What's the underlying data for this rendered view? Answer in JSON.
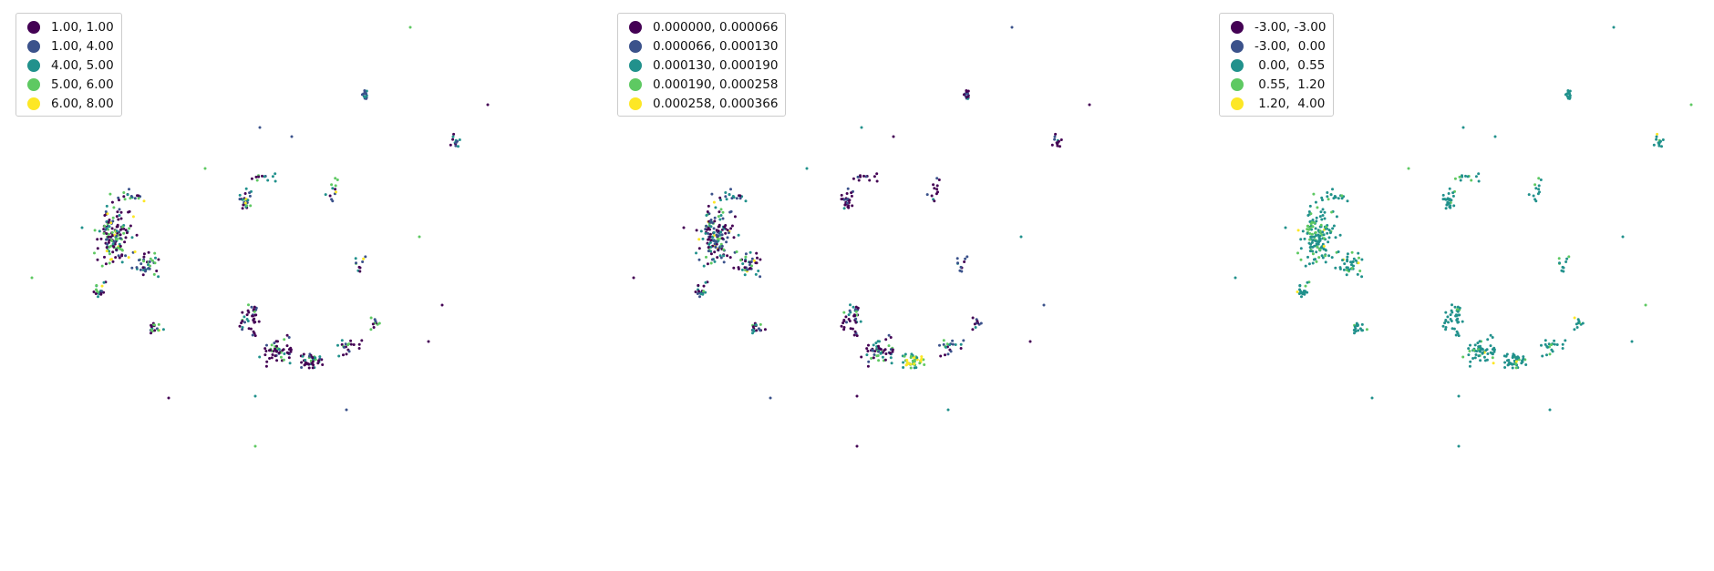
{
  "chart_data": [
    {
      "type": "scatter",
      "title": "",
      "xlabel": "",
      "ylabel": "",
      "axes_visible": false,
      "grid": false,
      "legend_position": "upper-left",
      "legend": [
        {
          "label": "1.00, 1.00",
          "color": "#440154"
        },
        {
          "label": "1.00, 4.00",
          "color": "#3b528b"
        },
        {
          "label": "4.00, 5.00",
          "color": "#21918c"
        },
        {
          "label": "5.00, 6.00",
          "color": "#5ec962"
        },
        {
          "label": "6.00, 8.00",
          "color": "#fde725"
        }
      ]
    },
    {
      "type": "scatter",
      "title": "",
      "xlabel": "",
      "ylabel": "",
      "axes_visible": false,
      "grid": false,
      "legend_position": "upper-left",
      "legend": [
        {
          "label": "0.000000, 0.000066",
          "color": "#440154"
        },
        {
          "label": "0.000066, 0.000130",
          "color": "#3b528b"
        },
        {
          "label": "0.000130, 0.000190",
          "color": "#21918c"
        },
        {
          "label": "0.000190, 0.000258",
          "color": "#5ec962"
        },
        {
          "label": "0.000258, 0.000366",
          "color": "#fde725"
        }
      ]
    },
    {
      "type": "scatter",
      "title": "",
      "xlabel": "",
      "ylabel": "",
      "axes_visible": false,
      "grid": false,
      "legend_position": "upper-left",
      "legend": [
        {
          "label": "-3.00, -3.00",
          "color": "#440154"
        },
        {
          "label": "-3.00,  0.00",
          "color": "#3b528b"
        },
        {
          "label": " 0.00,  0.55",
          "color": "#21918c"
        },
        {
          "label": " 0.55,  1.20",
          "color": "#5ec962"
        },
        {
          "label": " 1.20,  4.00",
          "color": "#fde725"
        }
      ]
    }
  ]
}
